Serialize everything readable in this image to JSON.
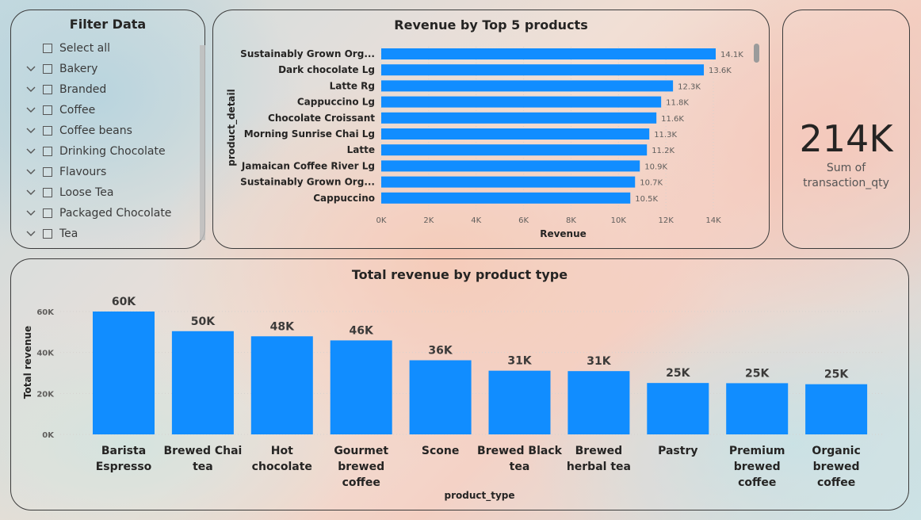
{
  "slicer": {
    "title": "Filter Data",
    "items": [
      {
        "label": "Select all",
        "expandable": false
      },
      {
        "label": "Bakery",
        "expandable": true
      },
      {
        "label": "Branded",
        "expandable": true
      },
      {
        "label": "Coffee",
        "expandable": true
      },
      {
        "label": "Coffee beans",
        "expandable": true
      },
      {
        "label": "Drinking Chocolate",
        "expandable": true
      },
      {
        "label": "Flavours",
        "expandable": true
      },
      {
        "label": "Loose Tea",
        "expandable": true
      },
      {
        "label": "Packaged Chocolate",
        "expandable": true
      },
      {
        "label": "Tea",
        "expandable": true
      }
    ]
  },
  "card": {
    "value": "214K",
    "label_line1": "Sum of",
    "label_line2": "transaction_qty"
  },
  "colors": {
    "bar": "#118DFF",
    "text": "#252423",
    "axis_text": "#605E5C",
    "panel_border": "#3b3b3b"
  },
  "chart_data": [
    {
      "type": "bar",
      "orientation": "horizontal",
      "title": "Revenue by Top 5 products",
      "xlabel": "Revenue",
      "ylabel": "product_detail",
      "categories": [
        "Sustainably Grown Org...",
        "Dark chocolate Lg",
        "Latte Rg",
        "Cappuccino Lg",
        "Chocolate Croissant",
        "Morning Sunrise Chai Lg",
        "Latte",
        "Jamaican Coffee River Lg",
        "Sustainably Grown Org...",
        "Cappuccino"
      ],
      "values": [
        14100,
        13600,
        12300,
        11800,
        11600,
        11300,
        11200,
        10900,
        10700,
        10500
      ],
      "data_labels": [
        "14.1K",
        "13.6K",
        "12.3K",
        "11.8K",
        "11.6K",
        "11.3K",
        "11.2K",
        "10.9K",
        "10.7K",
        "10.5K"
      ],
      "xlim": [
        0,
        14000
      ],
      "xticks": [
        0,
        2000,
        4000,
        6000,
        8000,
        10000,
        12000,
        14000
      ],
      "xtick_labels": [
        "0K",
        "2K",
        "4K",
        "6K",
        "8K",
        "10K",
        "12K",
        "14K"
      ],
      "grid": true
    },
    {
      "type": "bar",
      "orientation": "vertical",
      "title": "Total revenue by product type",
      "xlabel": "product_type",
      "ylabel": "Total revenue",
      "categories": [
        [
          "Barista",
          "Espresso"
        ],
        [
          "Brewed Chai",
          "tea"
        ],
        [
          "Hot",
          "chocolate"
        ],
        [
          "Gourmet",
          "brewed",
          "coffee"
        ],
        [
          "Scone"
        ],
        [
          "Brewed Black",
          "tea"
        ],
        [
          "Brewed",
          "herbal tea"
        ],
        [
          "Pastry"
        ],
        [
          "Premium",
          "brewed",
          "coffee"
        ],
        [
          "Organic",
          "brewed",
          "coffee"
        ]
      ],
      "values": [
        60000,
        50400,
        47900,
        45900,
        36200,
        31100,
        30900,
        25100,
        25000,
        24500
      ],
      "data_labels": [
        "60K",
        "50K",
        "48K",
        "46K",
        "36K",
        "31K",
        "31K",
        "25K",
        "25K",
        "25K"
      ],
      "ylim": [
        0,
        60000
      ],
      "yticks": [
        0,
        20000,
        40000,
        60000
      ],
      "ytick_labels": [
        "0K",
        "20K",
        "40K",
        "60K"
      ],
      "grid": true
    }
  ]
}
